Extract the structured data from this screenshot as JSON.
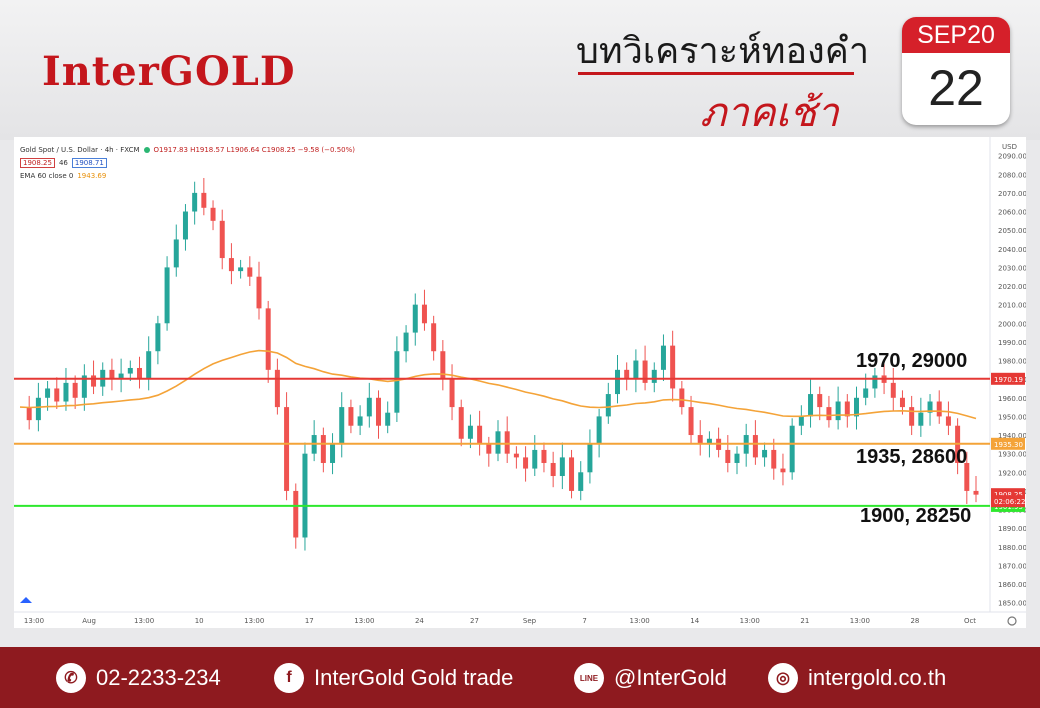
{
  "brand": "InterGOLD",
  "title_line1": "บทวิเคราะห์ทองคำ",
  "title_line2": "ภาคเช้า",
  "calendar": {
    "month": "SEP20",
    "day": "22"
  },
  "chart_data": {
    "type": "candlestick",
    "symbol_line": "Gold Spot / U.S. Dollar · 4h · FXCM",
    "ohlc_text": "O1917.83 H1918.57 L1906.64 C1908.25 −9.58 (−0.50%)",
    "bid": "1908.25",
    "spread": "46",
    "ask": "1908.71",
    "indicator": {
      "label": "EMA 60 close 0",
      "value": "1943.69",
      "color": "#f4a338"
    },
    "y_unit": "USD",
    "ylim": [
      1845,
      2100
    ],
    "y_ticks": [
      1850,
      1860,
      1870,
      1880,
      1890,
      1900,
      1910,
      1920,
      1930,
      1940,
      1950,
      1960,
      1970,
      1980,
      1990,
      2000,
      2010,
      2020,
      2030,
      2040,
      2050,
      2060,
      2070,
      2080,
      2090
    ],
    "x_tick_labels": [
      "13:00",
      "Aug",
      "13:00",
      "10",
      "13:00",
      "17",
      "13:00",
      "24",
      "27",
      "Sep",
      "7",
      "13:00",
      "14",
      "13:00",
      "21",
      "13:00",
      "28",
      "Oct"
    ],
    "horizontal_levels": [
      {
        "label": "1970, 29000",
        "value": 1970.19,
        "tag": "1970.19",
        "color": "#e53935"
      },
      {
        "label": "1935, 28600",
        "value": 1935.3,
        "tag": "1935.30",
        "color": "#f4a338"
      },
      {
        "label": "1900, 28250",
        "value": 1901.95,
        "tag": "1901.95",
        "color": "#2ee82e"
      }
    ],
    "price_tags": [
      {
        "text": "1908.25",
        "value": 1908.25,
        "color": "#e53935"
      },
      {
        "text": "02:06:22",
        "value": 1904.5,
        "color": "#e53935"
      }
    ],
    "price_path": [
      1955,
      1948,
      1960,
      1965,
      1958,
      1968,
      1960,
      1972,
      1966,
      1975,
      1970,
      1973,
      1976,
      1970,
      1985,
      2000,
      2030,
      2045,
      2060,
      2070,
      2062,
      2055,
      2035,
      2028,
      2030,
      2025,
      2008,
      1975,
      1955,
      1910,
      1885,
      1930,
      1940,
      1925,
      1935,
      1955,
      1945,
      1950,
      1960,
      1945,
      1952,
      1985,
      1995,
      2010,
      2000,
      1985,
      1970,
      1955,
      1938,
      1945,
      1935,
      1930,
      1942,
      1930,
      1928,
      1922,
      1932,
      1925,
      1918,
      1928,
      1910,
      1920,
      1935,
      1950,
      1962,
      1975,
      1970,
      1980,
      1968,
      1975,
      1988,
      1965,
      1955,
      1940,
      1935,
      1938,
      1932,
      1925,
      1930,
      1940,
      1928,
      1932,
      1922,
      1920,
      1945,
      1950,
      1962,
      1955,
      1948,
      1958,
      1950,
      1960,
      1965,
      1972,
      1968,
      1960,
      1955,
      1945,
      1952,
      1958,
      1950,
      1945,
      1925,
      1910,
      1908
    ]
  },
  "footer": {
    "phone": "02-2233-234",
    "facebook": "InterGold Gold trade",
    "line": "@InterGold",
    "web": "intergold.co.th",
    "line_icon_text": "LINE"
  }
}
